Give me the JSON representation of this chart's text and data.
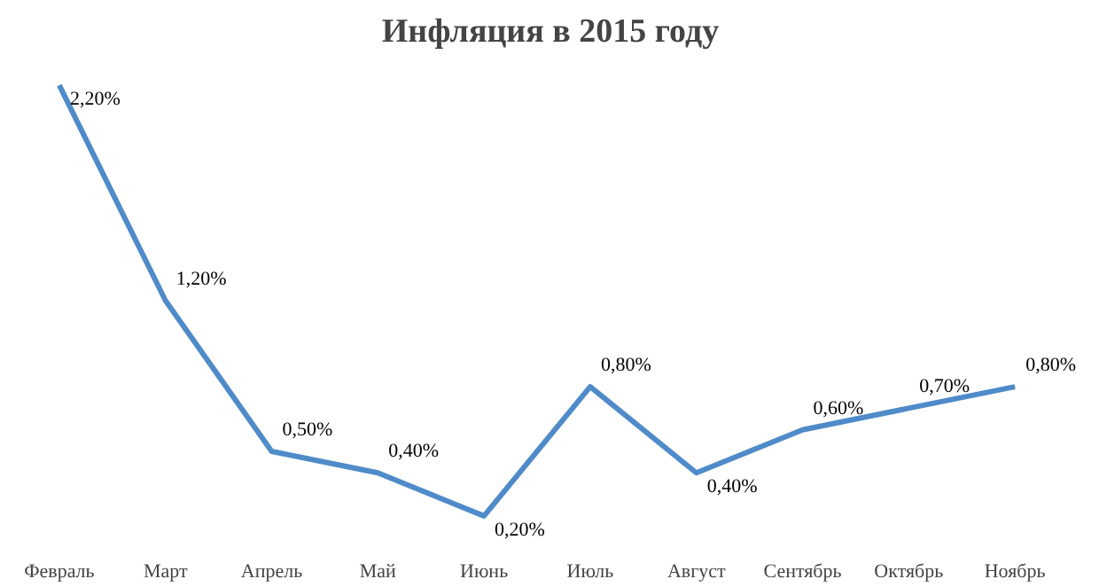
{
  "chart_data": {
    "type": "line",
    "title": "Инфляция в 2015 году",
    "categories": [
      "Февраль",
      "Март",
      "Апрель",
      "Май",
      "Июнь",
      "Июль",
      "Август",
      "Сентябрь",
      "Октябрь",
      "Ноябрь"
    ],
    "series": [
      {
        "color": "#4f8bc9",
        "values": [
          2.2,
          1.2,
          0.5,
          0.4,
          0.2,
          0.8,
          0.4,
          0.6,
          0.7,
          0.8
        ],
        "value_labels": [
          "2,20%",
          "1,20%",
          "0,50%",
          "0,40%",
          "0,20%",
          "0,80%",
          "0,40%",
          "0,60%",
          "0,70%",
          "0,80%"
        ]
      }
    ],
    "marker": "none",
    "line_style": "solid"
  }
}
